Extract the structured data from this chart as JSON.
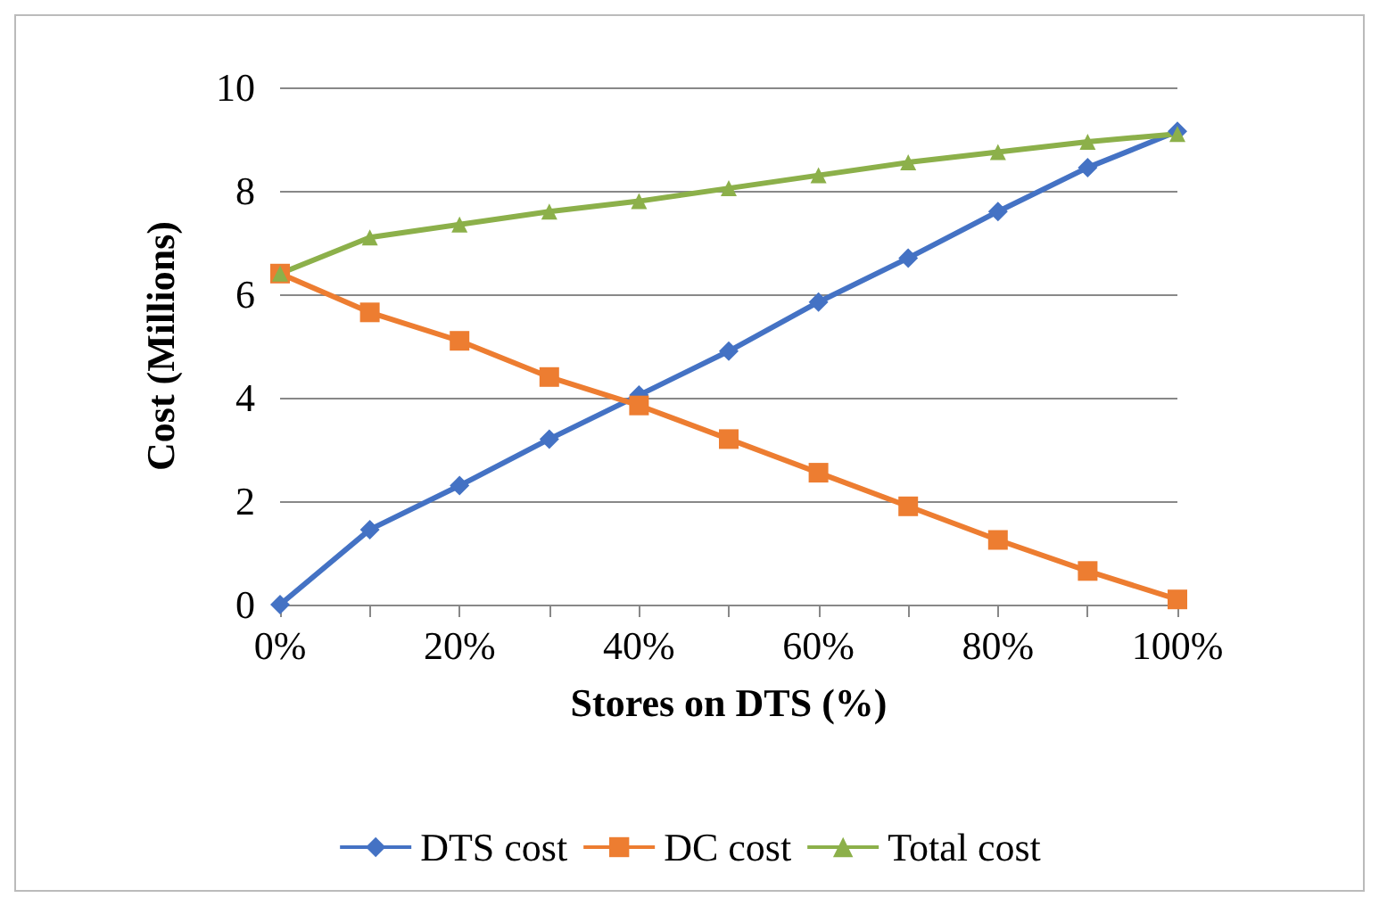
{
  "chart_data": {
    "type": "line",
    "xlabel": "Stores on DTS (%)",
    "ylabel": "Cost (Millions)",
    "x": [
      0,
      10,
      20,
      30,
      40,
      50,
      60,
      70,
      80,
      90,
      100
    ],
    "xlim": [
      0,
      100
    ],
    "xticks": [
      {
        "value": 0,
        "label": "0%"
      },
      {
        "value": 10,
        "label": null
      },
      {
        "value": 20,
        "label": "20%"
      },
      {
        "value": 30,
        "label": null
      },
      {
        "value": 40,
        "label": "40%"
      },
      {
        "value": 50,
        "label": null
      },
      {
        "value": 60,
        "label": "60%"
      },
      {
        "value": 70,
        "label": null
      },
      {
        "value": 80,
        "label": "80%"
      },
      {
        "value": 90,
        "label": null
      },
      {
        "value": 100,
        "label": "100%"
      }
    ],
    "ylim": [
      0,
      10
    ],
    "yticks": [
      0,
      2,
      4,
      6,
      8,
      10
    ],
    "grid": "y",
    "legend": "bottom",
    "series": [
      {
        "name": "DTS cost",
        "color": "#4472c4",
        "marker": "diamond",
        "values": [
          0,
          1.45,
          2.3,
          3.2,
          4.05,
          4.9,
          5.85,
          6.7,
          7.6,
          8.45,
          9.15
        ]
      },
      {
        "name": "DC cost",
        "color": "#ed7d31",
        "marker": "square",
        "values": [
          6.4,
          5.65,
          5.1,
          4.4,
          3.85,
          3.2,
          2.55,
          1.9,
          1.25,
          0.65,
          0.1
        ]
      },
      {
        "name": "Total cost",
        "color": "#8cb04a",
        "marker": "triangle",
        "values": [
          6.4,
          7.1,
          7.35,
          7.6,
          7.8,
          8.05,
          8.3,
          8.55,
          8.75,
          8.95,
          9.1
        ]
      }
    ]
  }
}
